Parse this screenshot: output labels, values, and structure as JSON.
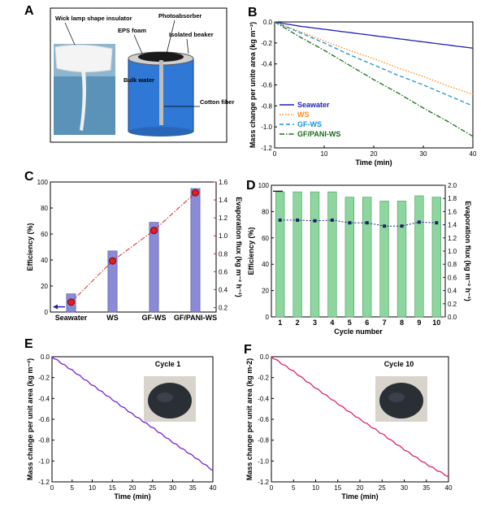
{
  "panel_letters": [
    "A",
    "B",
    "C",
    "D",
    "E",
    "F"
  ],
  "schematic": {
    "labels": {
      "wick": "Wick lamp shape insulator",
      "photoabsorber": "Photoabsorber",
      "eps": "EPS foam",
      "beaker": "Isolated beaker",
      "bulk": "Bulk water",
      "cotton": "Cotton fiber"
    },
    "colors": {
      "water": "#2f78d6",
      "absorber": "#1a1a1a",
      "foam": "#cfcfcf"
    }
  },
  "chart_data": [
    {
      "id": "B",
      "type": "line",
      "xlabel": "Time (min)",
      "ylabel": "Mass change per unite area (kg m⁻²)",
      "xlim": [
        0,
        40
      ],
      "ylim": [
        -1.2,
        0.0
      ],
      "xticks": [
        "0",
        "10",
        "20",
        "30",
        "40"
      ],
      "yticks": [
        "0.0",
        "-0.2",
        "-0.4",
        "-0.6",
        "-0.8",
        "-1.0",
        "-1.2"
      ],
      "legend_position": "bottom-left",
      "series": [
        {
          "name": "Seawater",
          "color": "#1f1fb4",
          "dash": "solid",
          "x": [
            0,
            5,
            10,
            15,
            20,
            25,
            30,
            35,
            40
          ],
          "y": [
            0,
            -0.04,
            -0.07,
            -0.1,
            -0.13,
            -0.16,
            -0.19,
            -0.22,
            -0.25
          ]
        },
        {
          "name": "WS",
          "color": "#ff8c1a",
          "dash": "dotted",
          "x": [
            0,
            5,
            10,
            15,
            20,
            25,
            30,
            35,
            40
          ],
          "y": [
            0,
            -0.09,
            -0.18,
            -0.27,
            -0.35,
            -0.44,
            -0.52,
            -0.61,
            -0.69
          ]
        },
        {
          "name": "GF-WS",
          "color": "#1e90d6",
          "dash": "dashed",
          "x": [
            0,
            5,
            10,
            15,
            20,
            25,
            30,
            35,
            40
          ],
          "y": [
            0,
            -0.1,
            -0.2,
            -0.31,
            -0.41,
            -0.51,
            -0.6,
            -0.7,
            -0.8
          ]
        },
        {
          "name": "GF/PANI-WS",
          "color": "#1a6b1a",
          "dash": "dashdot",
          "x": [
            0,
            5,
            10,
            15,
            20,
            25,
            30,
            35,
            40
          ],
          "y": [
            0,
            -0.14,
            -0.27,
            -0.41,
            -0.55,
            -0.68,
            -0.82,
            -0.95,
            -1.09
          ]
        }
      ]
    },
    {
      "id": "C",
      "type": "bar",
      "categories": [
        "Seawater",
        "WS",
        "GF-WS",
        "GF/PANI-WS"
      ],
      "ylabel": "Efficiency (%)",
      "y2label": "Evaporation flux (kg m⁻² h⁻¹)",
      "ylim": [
        0,
        100
      ],
      "y2lim": [
        0.15,
        1.6
      ],
      "yticks": [
        "0",
        "20",
        "40",
        "60",
        "80",
        "100"
      ],
      "y2ticks": [
        "0.2",
        "0.4",
        "0.6",
        "0.8",
        "1.0",
        "1.2",
        "1.4",
        "1.6"
      ],
      "series": [
        {
          "name": "Efficiency",
          "values": [
            14,
            47,
            69,
            95
          ],
          "color": "#8a8ad6"
        },
        {
          "name": "Evaporation flux",
          "values": [
            0.26,
            0.72,
            1.06,
            1.48
          ],
          "color": "#e02020"
        }
      ]
    },
    {
      "id": "D",
      "type": "bar",
      "categories": [
        "1",
        "2",
        "3",
        "4",
        "5",
        "6",
        "7",
        "8",
        "9",
        "10"
      ],
      "xlabel": "Cycle number",
      "ylabel": "Efficiency (%)",
      "y2label": "Evaporation flux (kg m⁻² h⁻¹)",
      "ylim": [
        0,
        100
      ],
      "y2lim": [
        0,
        2.0
      ],
      "yticks": [
        "0",
        "20",
        "40",
        "60",
        "80",
        "100"
      ],
      "y2ticks": [
        "0.0",
        "0.2",
        "0.4",
        "0.6",
        "0.8",
        "1.0",
        "1.2",
        "1.4",
        "1.6",
        "1.8",
        "2.0"
      ],
      "series": [
        {
          "name": "Efficiency",
          "values": [
            95,
            95,
            95,
            95,
            91,
            91,
            88,
            88,
            92,
            91
          ],
          "color": "#8ed6a0"
        },
        {
          "name": "Evaporation flux",
          "values": [
            1.47,
            1.47,
            1.46,
            1.47,
            1.43,
            1.43,
            1.38,
            1.38,
            1.44,
            1.43
          ],
          "color": "#1f1f6e"
        }
      ]
    },
    {
      "id": "E",
      "type": "line",
      "title": "Cycle 1",
      "xlabel": "Time (min)",
      "ylabel": "Mass change per unit area (kg m⁻²)",
      "xlim": [
        0,
        40
      ],
      "ylim": [
        -1.2,
        0.0
      ],
      "xticks": [
        "0",
        "5",
        "10",
        "15",
        "20",
        "25",
        "30",
        "35",
        "40"
      ],
      "yticks": [
        "0.0",
        "-0.2",
        "-0.4",
        "-0.6",
        "-0.8",
        "-1.0",
        "-1.2"
      ],
      "series": [
        {
          "color": "#7a1fd6",
          "x": [
            0,
            5,
            10,
            15,
            20,
            25,
            30,
            35,
            40
          ],
          "y": [
            0,
            -0.13,
            -0.27,
            -0.41,
            -0.55,
            -0.68,
            -0.82,
            -0.95,
            -1.09
          ]
        }
      ]
    },
    {
      "id": "F",
      "type": "line",
      "title": "Cycle 10",
      "xlabel": "Time (min)",
      "ylabel": "Mass change per unit area (kg m-2)",
      "xlim": [
        0,
        40
      ],
      "ylim": [
        -1.2,
        0.0
      ],
      "xticks": [
        "0",
        "5",
        "10",
        "15",
        "20",
        "25",
        "30",
        "35",
        "40"
      ],
      "yticks": [
        "0.0",
        "-0.2",
        "-0.4",
        "-0.6",
        "-0.8",
        "-1.0",
        "-1.2"
      ],
      "series": [
        {
          "color": "#e0206e",
          "x": [
            0,
            5,
            10,
            15,
            20,
            25,
            30,
            35,
            40
          ],
          "y": [
            0,
            -0.14,
            -0.3,
            -0.45,
            -0.6,
            -0.74,
            -0.89,
            -1.03,
            -1.15
          ]
        }
      ]
    }
  ]
}
